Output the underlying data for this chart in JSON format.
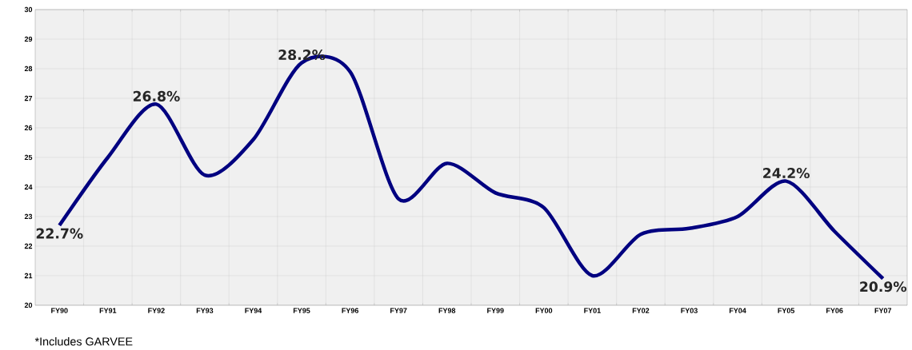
{
  "chart_data": {
    "type": "line",
    "categories": [
      "FY90",
      "FY91",
      "FY92",
      "FY93",
      "FY94",
      "FY95",
      "FY96",
      "FY97",
      "FY98",
      "FY99",
      "FY00",
      "FY01",
      "FY02",
      "FY03",
      "FY04",
      "FY05",
      "FY06",
      "FY07"
    ],
    "series": [
      {
        "color": "#000080",
        "values": [
          22.7,
          25.0,
          26.8,
          24.4,
          25.6,
          28.2,
          27.9,
          23.6,
          24.8,
          23.8,
          23.3,
          21.0,
          22.4,
          22.6,
          23.0,
          24.2,
          22.5,
          20.9
        ],
        "value_labels": [
          "22.7%",
          null,
          "26.8%",
          null,
          null,
          "28.2%",
          null,
          null,
          null,
          null,
          null,
          null,
          null,
          null,
          null,
          "24.2%",
          null,
          "20.9%"
        ]
      }
    ],
    "ylim": [
      20,
      30
    ],
    "yticks": [
      20,
      21,
      22,
      23,
      24,
      25,
      26,
      27,
      28,
      29,
      30
    ],
    "grid": true,
    "marker": "none",
    "annotations": [
      "*Includes GARVEE"
    ]
  }
}
